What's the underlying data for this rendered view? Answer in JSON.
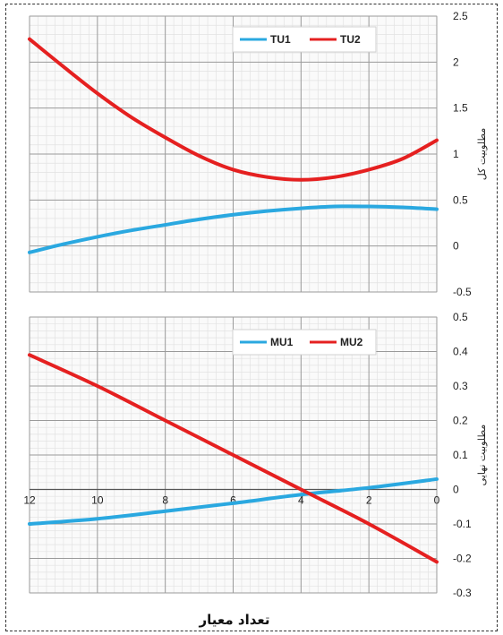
{
  "chart_data": [
    {
      "type": "line",
      "ylabel": "مطلوبیت کل",
      "xlim": [
        12,
        0
      ],
      "ylim": [
        -0.5,
        2.5
      ],
      "y_ticks": [
        "2.5",
        "2",
        "1.5",
        "1",
        "0.5",
        "0",
        "-0.5"
      ],
      "grid": true,
      "legend_position": "top",
      "series": [
        {
          "name": "TU1",
          "color": "#2aa8e0",
          "x": [
            12,
            11,
            10,
            9,
            8,
            7,
            6,
            5,
            4,
            3,
            2,
            1,
            0
          ],
          "y": [
            -0.07,
            0.02,
            0.1,
            0.17,
            0.23,
            0.29,
            0.34,
            0.38,
            0.41,
            0.43,
            0.43,
            0.42,
            0.4
          ]
        },
        {
          "name": "TU2",
          "color": "#e52020",
          "x": [
            12,
            11,
            10,
            9,
            8,
            7,
            6,
            5,
            4,
            3,
            2,
            1,
            0
          ],
          "y": [
            2.25,
            1.95,
            1.66,
            1.4,
            1.18,
            0.98,
            0.83,
            0.75,
            0.72,
            0.75,
            0.83,
            0.95,
            1.15
          ]
        }
      ]
    },
    {
      "type": "line",
      "ylabel": "مطلوبیت نهایی",
      "xlabel": "تعداد معیار",
      "xlim": [
        12,
        0
      ],
      "ylim": [
        -0.3,
        0.5
      ],
      "y_ticks": [
        "0.5",
        "0.4",
        "0.3",
        "0.2",
        "0.1",
        "0",
        "-0.1",
        "-0.2",
        "-0.3"
      ],
      "x_ticks": [
        "12",
        "10",
        "8",
        "6",
        "4",
        "2",
        "0"
      ],
      "grid": true,
      "legend_position": "top",
      "series": [
        {
          "name": "MU1",
          "color": "#2aa8e0",
          "x": [
            12,
            10,
            8,
            6,
            4,
            2,
            0
          ],
          "y": [
            -0.1,
            -0.085,
            -0.063,
            -0.04,
            -0.015,
            0.005,
            0.03
          ]
        },
        {
          "name": "MU2",
          "color": "#e52020",
          "x": [
            12,
            10,
            8,
            6,
            4,
            2,
            0
          ],
          "y": [
            0.39,
            0.3,
            0.2,
            0.1,
            0.0,
            -0.1,
            -0.21
          ]
        }
      ]
    }
  ]
}
